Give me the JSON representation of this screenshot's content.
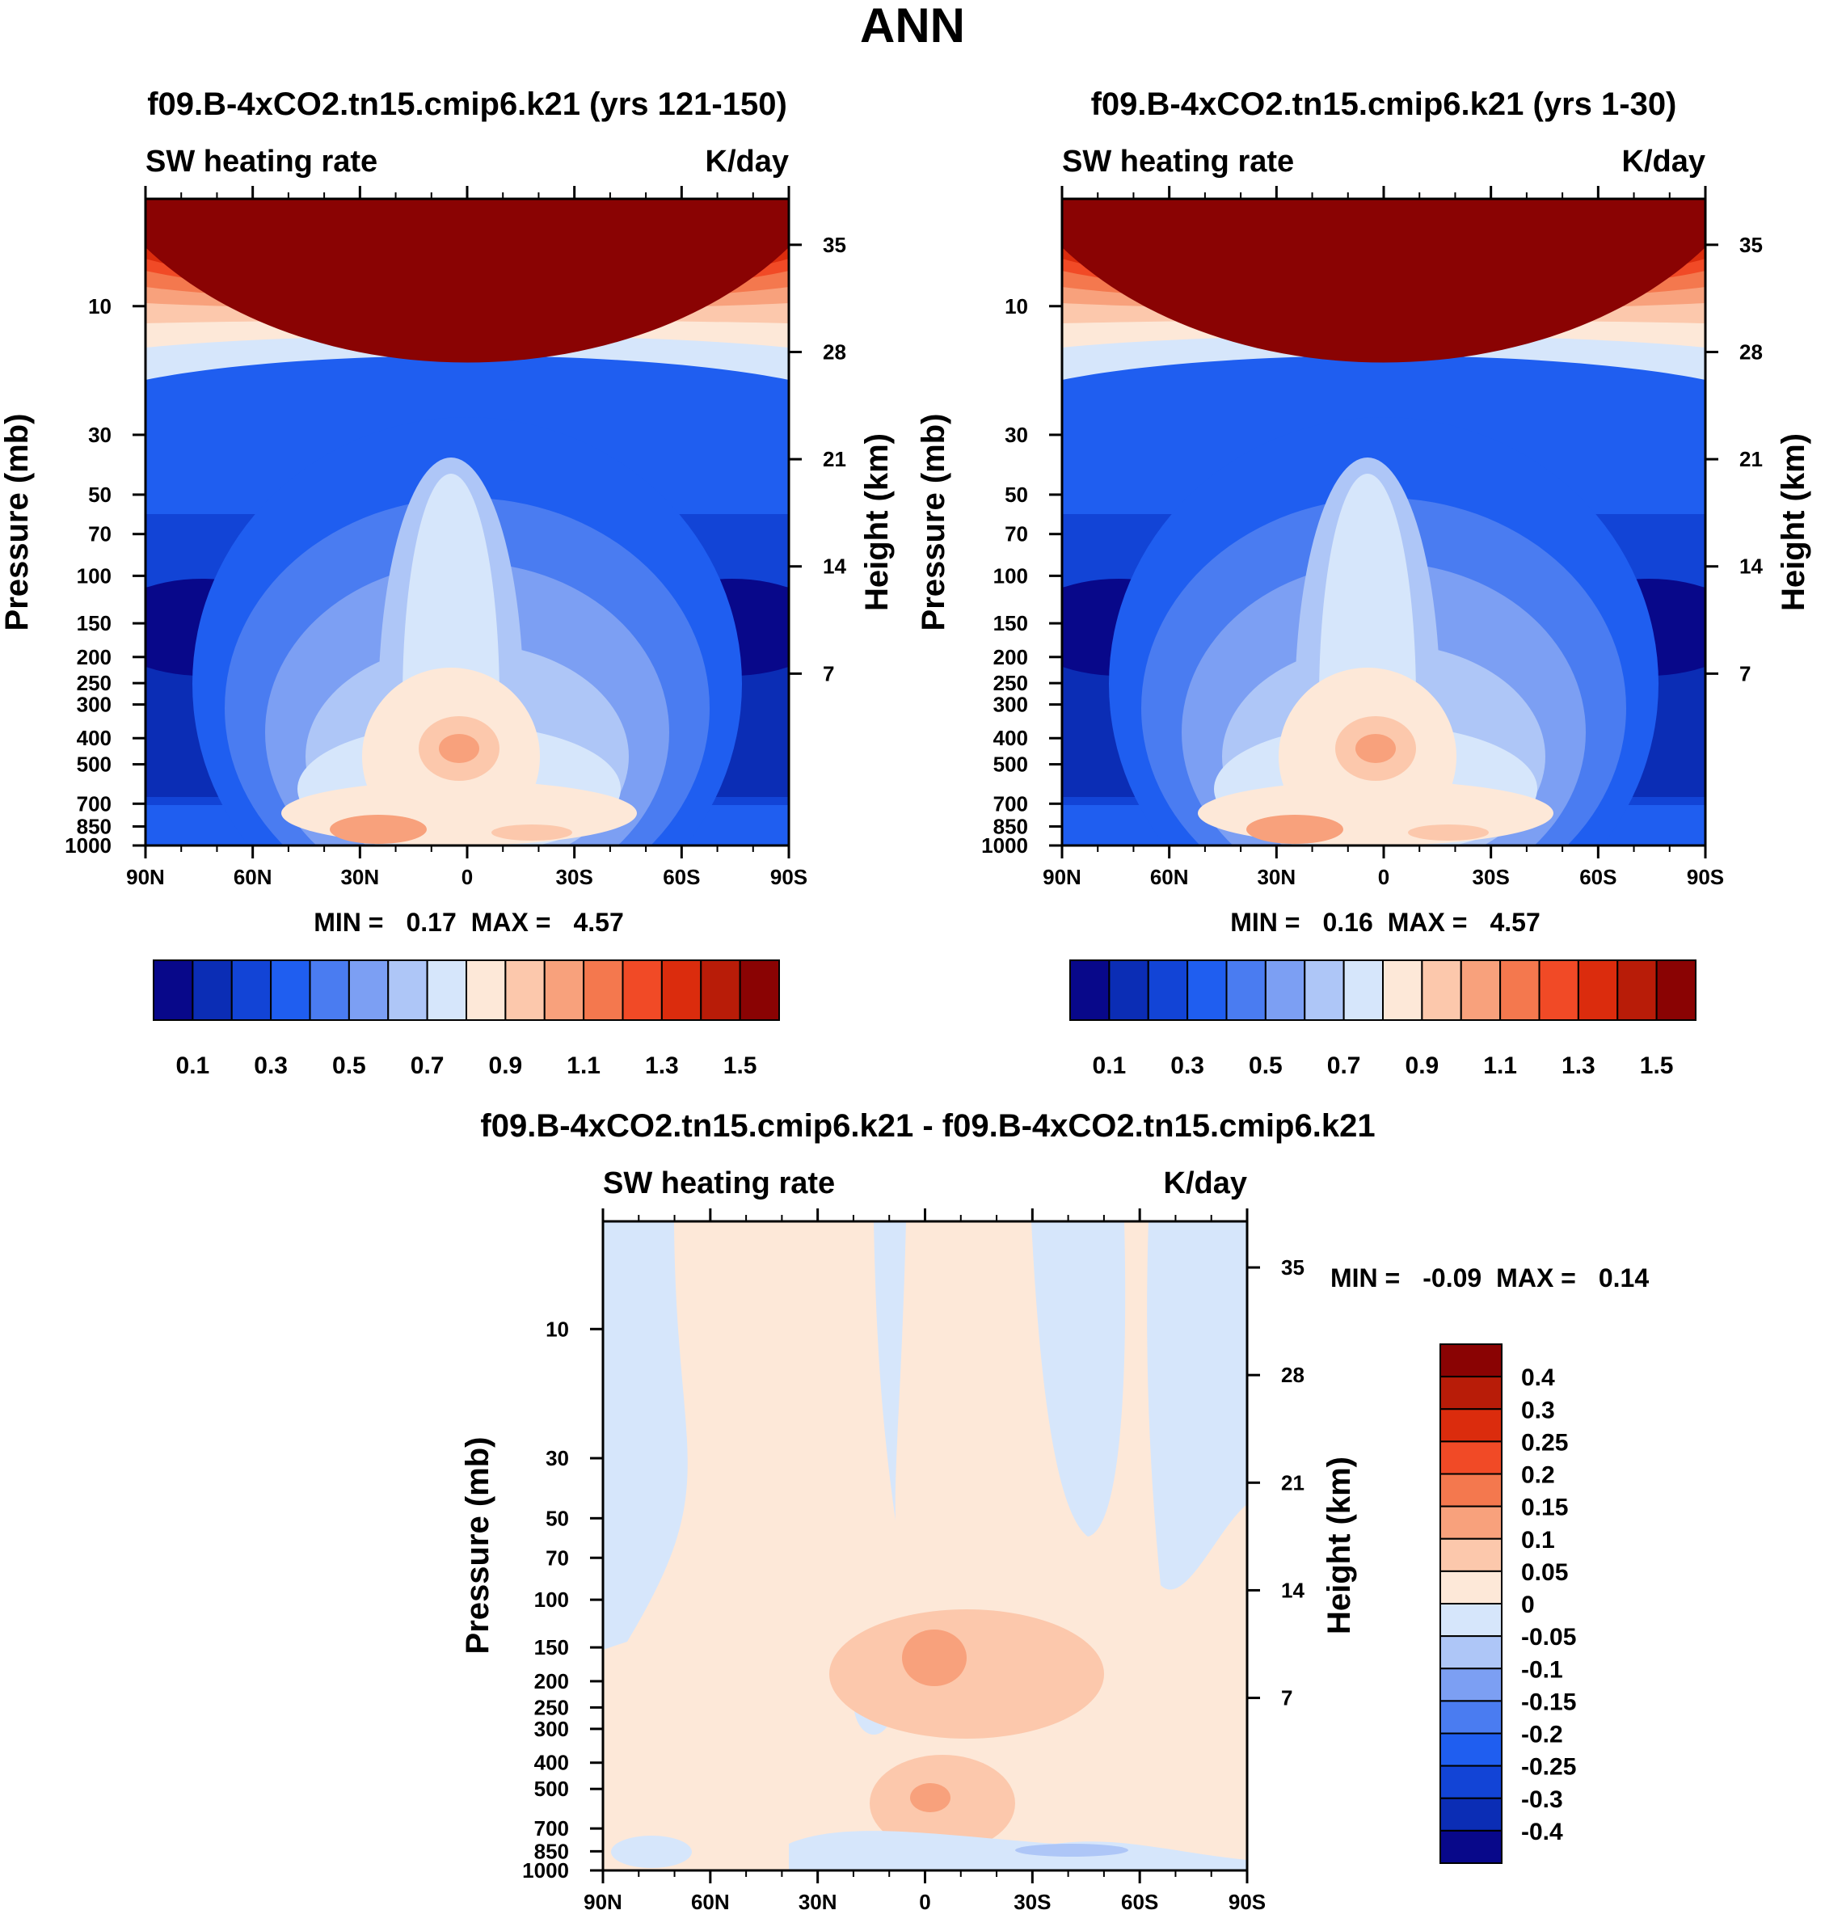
{
  "main_title": "ANN",
  "colors": {
    "scale": [
      "#08088a",
      "#0b2db5",
      "#1244d6",
      "#1f5ef0",
      "#4a7cf1",
      "#7c9ff3",
      "#aec6f7",
      "#d6e6fb",
      "#fde8d8",
      "#fcc8ac",
      "#f8a17c",
      "#f4784e",
      "#f14a26",
      "#db2c0d",
      "#b81c08",
      "#8a0303"
    ]
  },
  "chart_data": [
    {
      "type": "heatmap",
      "title": "f09.B-4xCO2.tn15.cmip6.k21 (yrs 121-150)",
      "left_subtitle": "SW heating rate",
      "right_subtitle": "K/day",
      "ylabel": "Pressure (mb)",
      "ylabel_right": "Height (km)",
      "x_ticks": [
        "90N",
        "60N",
        "30N",
        "0",
        "30S",
        "60S",
        "90S"
      ],
      "y_ticks": [
        "10",
        "30",
        "50",
        "70",
        "100",
        "150",
        "200",
        "250",
        "300",
        "400",
        "500",
        "700",
        "850",
        "1000"
      ],
      "y2_ticks": [
        "35",
        "28",
        "21",
        "14",
        "7"
      ],
      "min_label": "MIN =",
      "min_value": "0.17",
      "max_label": "MAX =",
      "max_value": "4.57",
      "colorbar_labels": [
        "0.1",
        "0.3",
        "0.5",
        "0.7",
        "0.9",
        "1.1",
        "1.3",
        "1.5"
      ],
      "colorbar_levels": [
        0.1,
        0.2,
        0.3,
        0.4,
        0.5,
        0.6,
        0.7,
        0.8,
        0.9,
        1.0,
        1.1,
        1.2,
        1.3,
        1.4,
        1.5
      ]
    },
    {
      "type": "heatmap",
      "title": "f09.B-4xCO2.tn15.cmip6.k21 (yrs 1-30)",
      "left_subtitle": "SW heating rate",
      "right_subtitle": "K/day",
      "ylabel": "Pressure (mb)",
      "ylabel_right": "Height (km)",
      "x_ticks": [
        "90N",
        "60N",
        "30N",
        "0",
        "30S",
        "60S",
        "90S"
      ],
      "y_ticks": [
        "10",
        "30",
        "50",
        "70",
        "100",
        "150",
        "200",
        "250",
        "300",
        "400",
        "500",
        "700",
        "850",
        "1000"
      ],
      "y2_ticks": [
        "35",
        "28",
        "21",
        "14",
        "7"
      ],
      "min_label": "MIN =",
      "min_value": "0.16",
      "max_label": "MAX =",
      "max_value": "4.57",
      "colorbar_labels": [
        "0.1",
        "0.3",
        "0.5",
        "0.7",
        "0.9",
        "1.1",
        "1.3",
        "1.5"
      ],
      "colorbar_levels": [
        0.1,
        0.2,
        0.3,
        0.4,
        0.5,
        0.6,
        0.7,
        0.8,
        0.9,
        1.0,
        1.1,
        1.2,
        1.3,
        1.4,
        1.5
      ]
    },
    {
      "type": "heatmap",
      "title": "f09.B-4xCO2.tn15.cmip6.k21 - f09.B-4xCO2.tn15.cmip6.k21",
      "left_subtitle": "SW heating rate",
      "right_subtitle": "K/day",
      "ylabel": "Pressure (mb)",
      "ylabel_right": "Height (km)",
      "x_ticks": [
        "90N",
        "60N",
        "30N",
        "0",
        "30S",
        "60S",
        "90S"
      ],
      "y_ticks": [
        "10",
        "30",
        "50",
        "70",
        "100",
        "150",
        "200",
        "250",
        "300",
        "400",
        "500",
        "700",
        "850",
        "1000"
      ],
      "y2_ticks": [
        "35",
        "28",
        "21",
        "14",
        "7"
      ],
      "min_label": "MIN =",
      "min_value": "-0.09",
      "max_label": "MAX =",
      "max_value": "0.14",
      "colorbar_labels": [
        "0.4",
        "0.3",
        "0.25",
        "0.2",
        "0.15",
        "0.1",
        "0.05",
        "0",
        "-0.05",
        "-0.1",
        "-0.15",
        "-0.2",
        "-0.25",
        "-0.3",
        "-0.4"
      ],
      "colorbar_levels": [
        0.4,
        0.3,
        0.25,
        0.2,
        0.15,
        0.1,
        0.05,
        0,
        -0.05,
        -0.1,
        -0.15,
        -0.2,
        -0.25,
        -0.3,
        -0.4
      ]
    }
  ]
}
